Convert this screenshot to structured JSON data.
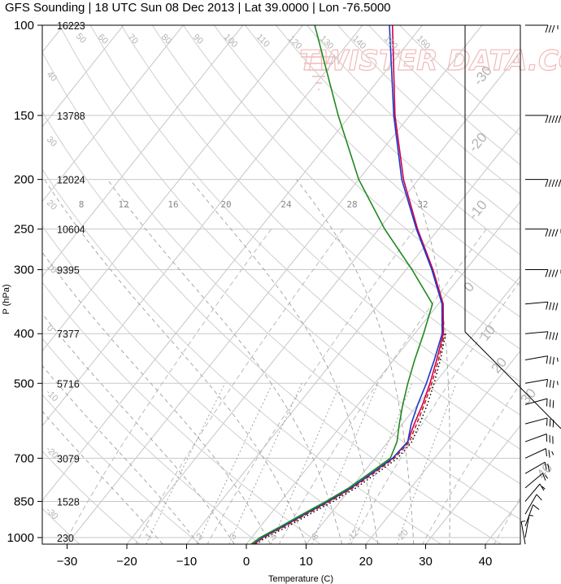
{
  "title": "GFS Sounding | 18 UTC Sun 08 Dec 2013 | Lat 39.0000 | Lon -76.5000",
  "watermark": "TWISTER DATA.COM",
  "chart_data": {
    "type": "skew-t",
    "title": "GFS Sounding | 18 UTC Sun 08 Dec 2013 | Lat 39.0000 | Lon -76.5000",
    "xlabel": "Temperature (C)",
    "ylabel": "P (hPa)",
    "xlim": [
      -34,
      46
    ],
    "ylim": [
      1030,
      100
    ],
    "x_ticks": [
      -30,
      -20,
      -10,
      0,
      10,
      20,
      30,
      40
    ],
    "pressure_ticks": [
      100,
      150,
      200,
      250,
      300,
      400,
      500,
      700,
      850,
      1000
    ],
    "heights_m": [
      "16223",
      "13788",
      "12024",
      "10604",
      "9395",
      "7377",
      "5716",
      "3079",
      "1528",
      "230"
    ],
    "mixing_ratio_labels": [
      "8",
      "12",
      "16",
      "20",
      "24",
      "28",
      "32"
    ],
    "series": [
      {
        "color": "#d4004c",
        "style": "solid",
        "points": [
          [
            1030,
            1.2
          ],
          [
            1000,
            1.8
          ],
          [
            950,
            3.8
          ],
          [
            900,
            5.8
          ],
          [
            850,
            8.0
          ],
          [
            800,
            10.0
          ],
          [
            750,
            11.5
          ],
          [
            700,
            13.0
          ],
          [
            650,
            13.3
          ],
          [
            600,
            12.0
          ],
          [
            550,
            10.8
          ],
          [
            500,
            9.2
          ],
          [
            450,
            7.2
          ],
          [
            400,
            4.8
          ],
          [
            350,
            0.8
          ],
          [
            300,
            -5.5
          ],
          [
            250,
            -13.5
          ],
          [
            200,
            -22.5
          ],
          [
            150,
            -32.5
          ],
          [
            100,
            -45.0
          ]
        ]
      },
      {
        "color": "#1a3cc8",
        "style": "solid",
        "points": [
          [
            1030,
            1.2
          ],
          [
            1000,
            1.8
          ],
          [
            950,
            3.8
          ],
          [
            900,
            5.8
          ],
          [
            850,
            8.0
          ],
          [
            800,
            10.0
          ],
          [
            750,
            11.5
          ],
          [
            700,
            13.0
          ],
          [
            650,
            13.3
          ],
          [
            600,
            11.5
          ],
          [
            550,
            10.0
          ],
          [
            500,
            8.6
          ],
          [
            450,
            6.8
          ],
          [
            400,
            4.6
          ],
          [
            350,
            0.6
          ],
          [
            300,
            -5.7
          ],
          [
            250,
            -13.7
          ],
          [
            200,
            -22.8
          ],
          [
            150,
            -32.7
          ],
          [
            100,
            -45.5
          ]
        ]
      },
      {
        "color": "#000000",
        "style": "dotted",
        "points": [
          [
            1030,
            1.6
          ],
          [
            1000,
            2.4
          ],
          [
            950,
            4.6
          ],
          [
            900,
            6.6
          ],
          [
            850,
            8.8
          ],
          [
            800,
            10.8
          ],
          [
            750,
            12.3
          ],
          [
            700,
            13.8
          ],
          [
            650,
            14.0
          ],
          [
            600,
            12.9
          ],
          [
            550,
            11.6
          ],
          [
            500,
            9.9
          ],
          [
            450,
            7.8
          ],
          [
            400,
            5.2
          ]
        ]
      },
      {
        "color": "#c81414",
        "style": "dashed",
        "points": [
          [
            1030,
            1.3
          ],
          [
            1000,
            2.0
          ],
          [
            950,
            4.1
          ],
          [
            900,
            6.1
          ],
          [
            850,
            8.3
          ],
          [
            800,
            10.3
          ],
          [
            750,
            11.8
          ],
          [
            700,
            13.3
          ],
          [
            650,
            13.6
          ],
          [
            600,
            12.4
          ],
          [
            550,
            11.1
          ],
          [
            500,
            9.5
          ],
          [
            450,
            7.5
          ],
          [
            400,
            5.0
          ]
        ]
      },
      {
        "color": "#1f8a1f",
        "style": "solid",
        "points": [
          [
            1030,
            0.8
          ],
          [
            1000,
            1.4
          ],
          [
            950,
            3.4
          ],
          [
            900,
            5.4
          ],
          [
            850,
            7.6
          ],
          [
            800,
            9.6
          ],
          [
            750,
            11.1
          ],
          [
            700,
            12.6
          ],
          [
            650,
            11.5
          ],
          [
            600,
            9.5
          ],
          [
            550,
            7.5
          ],
          [
            500,
            5.5
          ],
          [
            450,
            3.5
          ],
          [
            400,
            1.5
          ],
          [
            350,
            -1.0
          ],
          [
            300,
            -9.0
          ],
          [
            250,
            -19.0
          ],
          [
            200,
            -30.0
          ],
          [
            150,
            -42.0
          ],
          [
            100,
            -58.0
          ]
        ]
      }
    ],
    "isotherm_labels": [
      "-30",
      "-20",
      "-10",
      "0",
      "10",
      "20",
      "30",
      "40"
    ],
    "dry_adiabat_labels": [
      "-30",
      "-20",
      "-10",
      "0",
      "10",
      "20",
      "30",
      "40",
      "50",
      "60",
      "70",
      "80",
      "90",
      "100",
      "110",
      "120",
      "130",
      "140",
      "150",
      "160"
    ],
    "moist_adiabat_labels": [
      "1",
      "2",
      "3",
      "5",
      "8",
      "12",
      "20"
    ],
    "grid": true,
    "wind_barbs": {
      "side": "right",
      "levels": [
        100,
        150,
        200,
        250,
        300,
        350,
        400,
        450,
        500,
        550,
        600,
        650,
        700,
        750,
        800,
        850,
        900,
        950,
        1000,
        1030
      ],
      "speed_kt": [
        35,
        60,
        55,
        45,
        45,
        40,
        40,
        35,
        35,
        30,
        30,
        30,
        25,
        20,
        15,
        15,
        10,
        10,
        5,
        5
      ],
      "direction_deg": [
        270,
        270,
        270,
        270,
        270,
        275,
        275,
        280,
        280,
        285,
        285,
        290,
        295,
        300,
        310,
        320,
        330,
        340,
        350,
        10
      ]
    }
  }
}
